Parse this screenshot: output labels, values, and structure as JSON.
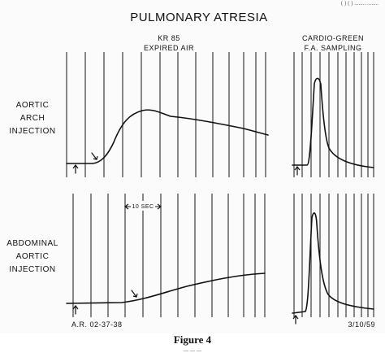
{
  "figure": {
    "title": "PULMONARY ATRESIA",
    "header_text": "(   ) (   ) ........ ........",
    "left_heading": [
      "KR 85",
      "EXPIRED AIR"
    ],
    "right_heading": [
      "CARDIO-GREEN",
      "F.A. SAMPLING"
    ],
    "row_labels": {
      "top": [
        "AORTIC",
        "ARCH",
        "INJECTION"
      ],
      "bottom": [
        "ABDOMINAL",
        "AORTIC",
        "INJECTION"
      ]
    },
    "time_marker": "10 SEC",
    "bottom_left_note": "A.R.  02-37-38",
    "bottom_right_note": "3/10/59",
    "caption_label": "Figure 4",
    "caption_text": "...  ...  ..."
  }
}
